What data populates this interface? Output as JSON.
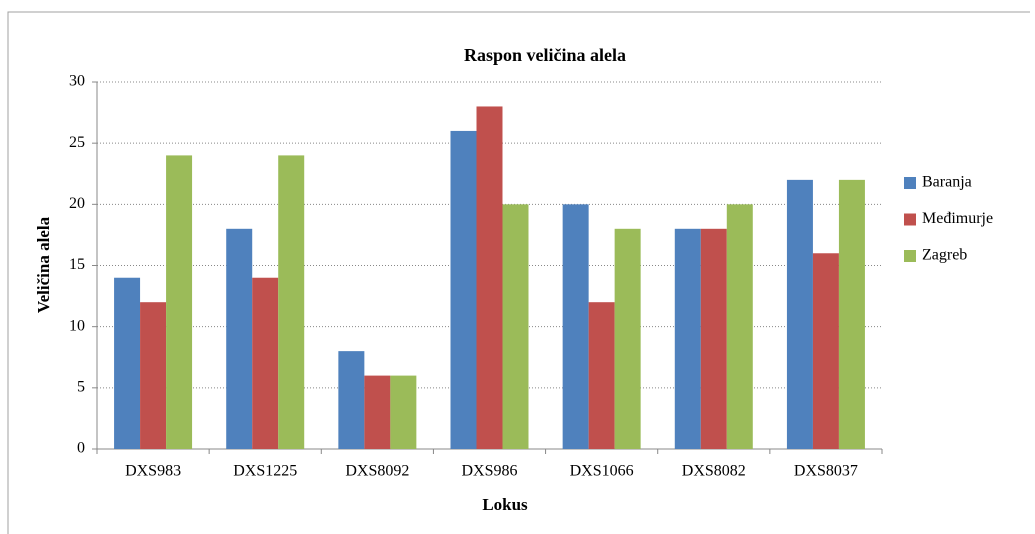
{
  "chart_data": {
    "type": "bar",
    "title": "Raspon veličina alela",
    "x_label": "Lokus",
    "y_label": "Veličina alela",
    "categories": [
      "DXS983",
      "DXS1225",
      "DXS8092",
      "DXS986",
      "DXS1066",
      "DXS8082",
      "DXS8037"
    ],
    "series": [
      {
        "name": "Baranja",
        "color": "#4f81bd",
        "values": [
          14,
          18,
          8,
          26,
          20,
          18,
          22
        ]
      },
      {
        "name": "Međimurje",
        "color": "#c0504d",
        "values": [
          12,
          14,
          6,
          28,
          12,
          18,
          16
        ]
      },
      {
        "name": "Zagreb",
        "color": "#9bbb59",
        "values": [
          24,
          24,
          6,
          20,
          18,
          20,
          22
        ]
      }
    ],
    "ylim": [
      0,
      30
    ],
    "yticks": [
      0,
      5,
      10,
      15,
      20,
      25,
      30
    ],
    "grid": true,
    "legend": "right"
  }
}
